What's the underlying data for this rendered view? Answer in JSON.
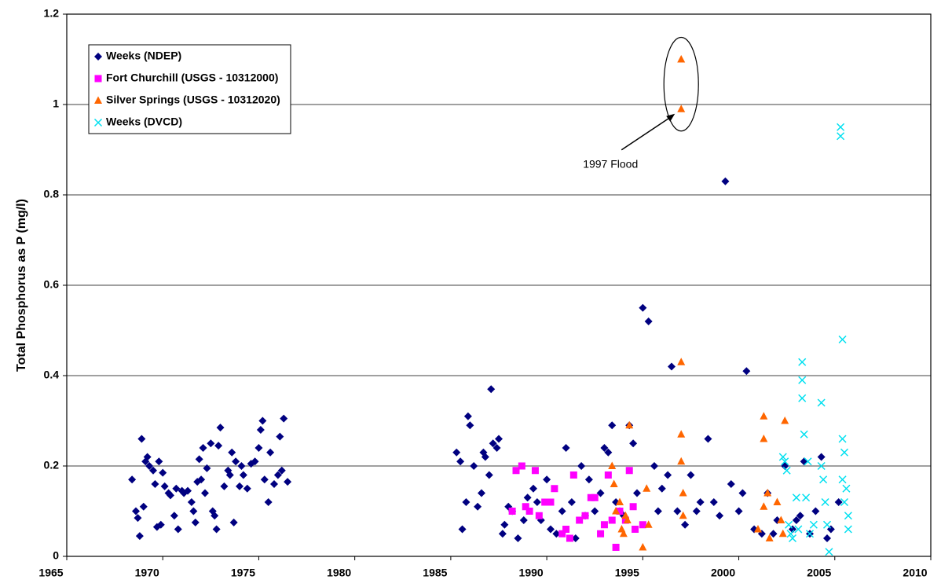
{
  "chart_data": {
    "type": "scatter",
    "y_label": "Total Phosphorus as P (mg/l)",
    "xlim": [
      1965,
      2010
    ],
    "ylim": [
      0,
      1.2
    ],
    "xticks": [
      1965,
      1970,
      1975,
      1980,
      1985,
      1990,
      1995,
      2000,
      2005,
      2010
    ],
    "yticks": [
      0,
      0.2,
      0.4,
      0.6,
      0.8,
      1,
      1.2
    ],
    "grid": true,
    "legend": "upper left",
    "annotations": [
      {
        "text": "1997 Flood"
      }
    ],
    "series": [
      {
        "name": "Weeks (NDEP)",
        "color": "#000080",
        "marker": "diamond",
        "x": [
          1968.4,
          1968.6,
          1968.7,
          1968.8,
          1968.9,
          1969.0,
          1969.1,
          1969.2,
          1969.3,
          1969.5,
          1969.6,
          1969.7,
          1969.8,
          1969.9,
          1970.0,
          1970.1,
          1970.3,
          1970.4,
          1970.6,
          1970.7,
          1970.8,
          1971.0,
          1971.1,
          1971.3,
          1971.5,
          1971.6,
          1971.7,
          1971.8,
          1971.9,
          1972.0,
          1972.1,
          1972.2,
          1972.3,
          1972.5,
          1972.6,
          1972.7,
          1972.8,
          1972.9,
          1973.0,
          1973.2,
          1973.4,
          1973.5,
          1973.6,
          1973.7,
          1973.8,
          1974.0,
          1974.1,
          1974.2,
          1974.4,
          1974.6,
          1974.8,
          1975.0,
          1975.1,
          1975.2,
          1975.3,
          1975.5,
          1975.6,
          1975.8,
          1976.0,
          1976.1,
          1976.2,
          1976.3,
          1976.5,
          1985.3,
          1985.5,
          1985.6,
          1985.8,
          1985.9,
          1986.0,
          1986.2,
          1986.4,
          1986.6,
          1986.7,
          1986.8,
          1987.0,
          1987.1,
          1987.2,
          1987.4,
          1987.5,
          1987.7,
          1987.8,
          1988.0,
          1988.2,
          1988.5,
          1988.8,
          1989.0,
          1989.3,
          1989.5,
          1989.7,
          1990.0,
          1990.2,
          1990.5,
          1990.8,
          1991.0,
          1991.3,
          1991.5,
          1991.8,
          1992.0,
          1992.2,
          1992.5,
          1992.8,
          1993.0,
          1993.2,
          1993.4,
          1993.6,
          1993.8,
          1994.0,
          1994.3,
          1994.5,
          1994.7,
          1995.0,
          1995.3,
          1995.6,
          1995.8,
          1996.0,
          1996.3,
          1996.5,
          1996.8,
          1997.2,
          1997.5,
          1997.8,
          1998.0,
          1998.4,
          1998.7,
          1999.0,
          1999.3,
          1999.6,
          2000.0,
          2000.2,
          2000.4,
          2000.8,
          2001.2,
          2001.5,
          2001.8,
          2002.0,
          2002.4,
          2002.8,
          2003.0,
          2003.2,
          2003.4,
          2003.7,
          2004.0,
          2004.3,
          2004.6,
          2004.8,
          2005.2
        ],
        "values": [
          0.17,
          0.1,
          0.085,
          0.045,
          0.26,
          0.11,
          0.21,
          0.22,
          0.2,
          0.19,
          0.16,
          0.065,
          0.21,
          0.07,
          0.185,
          0.155,
          0.14,
          0.135,
          0.09,
          0.15,
          0.06,
          0.145,
          0.14,
          0.145,
          0.12,
          0.1,
          0.075,
          0.165,
          0.215,
          0.17,
          0.24,
          0.14,
          0.195,
          0.25,
          0.1,
          0.09,
          0.06,
          0.245,
          0.285,
          0.155,
          0.19,
          0.18,
          0.23,
          0.075,
          0.21,
          0.155,
          0.2,
          0.18,
          0.15,
          0.205,
          0.21,
          0.24,
          0.28,
          0.3,
          0.17,
          0.12,
          0.23,
          0.16,
          0.18,
          0.265,
          0.19,
          0.305,
          0.165,
          0.23,
          0.21,
          0.06,
          0.12,
          0.31,
          0.29,
          0.2,
          0.11,
          0.14,
          0.23,
          0.22,
          0.18,
          0.37,
          0.25,
          0.24,
          0.26,
          0.05,
          0.07,
          0.11,
          0.1,
          0.04,
          0.08,
          0.13,
          0.15,
          0.12,
          0.08,
          0.17,
          0.06,
          0.05,
          0.1,
          0.24,
          0.12,
          0.04,
          0.2,
          0.09,
          0.17,
          0.1,
          0.14,
          0.24,
          0.23,
          0.29,
          0.12,
          0.1,
          0.09,
          0.29,
          0.25,
          0.14,
          0.55,
          0.52,
          0.2,
          0.1,
          0.15,
          0.18,
          0.42,
          0.1,
          0.07,
          0.18,
          0.1,
          0.12,
          0.26,
          0.12,
          0.09,
          0.83,
          0.16,
          0.1,
          0.14,
          0.41,
          0.06,
          0.05,
          0.14,
          0.05,
          0.08,
          0.2,
          0.06,
          0.08,
          0.09,
          0.21,
          0.05,
          0.1,
          0.22,
          0.04,
          0.06,
          0.12
        ]
      },
      {
        "name": "Fort Churchill (USGS - 10312000)",
        "color": "#ff00ff",
        "marker": "square",
        "x": [
          1988.2,
          1988.4,
          1988.7,
          1988.9,
          1989.1,
          1989.4,
          1989.6,
          1989.9,
          1990.2,
          1990.4,
          1990.8,
          1991.0,
          1991.2,
          1991.4,
          1991.7,
          1992.0,
          1992.3,
          1992.5,
          1992.8,
          1993.0,
          1993.2,
          1993.4,
          1993.6,
          1993.8,
          1994.1,
          1994.3,
          1994.5,
          1994.6,
          1995.0
        ],
        "values": [
          0.1,
          0.19,
          0.2,
          0.11,
          0.1,
          0.19,
          0.09,
          0.12,
          0.12,
          0.15,
          0.05,
          0.06,
          0.04,
          0.18,
          0.08,
          0.09,
          0.13,
          0.13,
          0.05,
          0.07,
          0.18,
          0.08,
          0.02,
          0.1,
          0.08,
          0.19,
          0.11,
          0.06,
          0.07
        ]
      },
      {
        "name": "Silver Springs (USGS - 10312020)",
        "color": "#ff6600",
        "marker": "triangle",
        "x": [
          1993.4,
          1993.5,
          1993.6,
          1993.8,
          1993.9,
          1994.0,
          1994.1,
          1994.2,
          1994.3,
          1995.0,
          1995.2,
          1995.3,
          1997.0,
          1997.0,
          1997.0,
          1997.0,
          1997.0,
          1997.1,
          1997.1,
          2001.3,
          2001.3,
          2001.5,
          2001.6,
          2001.0,
          2001.3,
          2002.0,
          2002.2,
          2002.3,
          2002.4
        ],
        "values": [
          0.2,
          0.16,
          0.1,
          0.12,
          0.06,
          0.05,
          0.09,
          0.08,
          0.29,
          0.02,
          0.15,
          0.07,
          1.1,
          0.99,
          0.43,
          0.27,
          0.21,
          0.14,
          0.09,
          0.31,
          0.26,
          0.14,
          0.04,
          0.06,
          0.11,
          0.12,
          0.08,
          0.05,
          0.3
        ]
      },
      {
        "name": "Weeks (DVCD)",
        "color": "#00e0f0",
        "marker": "x",
        "x": [
          2002.3,
          2002.4,
          2002.5,
          2002.6,
          2002.7,
          2002.8,
          2003.0,
          2003.1,
          2003.3,
          2003.3,
          2003.3,
          2003.4,
          2003.5,
          2003.6,
          2003.7,
          2003.9,
          2004.3,
          2004.3,
          2004.4,
          2004.5,
          2004.6,
          2004.7,
          2005.3,
          2005.3,
          2005.4,
          2005.4,
          2005.5,
          2005.4,
          2005.6,
          2005.7,
          2005.7,
          2005.5
        ],
        "values": [
          0.22,
          0.21,
          0.19,
          0.07,
          0.05,
          0.04,
          0.13,
          0.06,
          0.43,
          0.39,
          0.35,
          0.27,
          0.13,
          0.21,
          0.05,
          0.07,
          0.34,
          0.2,
          0.17,
          0.12,
          0.07,
          0.01,
          0.95,
          0.93,
          0.48,
          0.26,
          0.23,
          0.17,
          0.15,
          0.09,
          0.06,
          0.12
        ]
      }
    ]
  }
}
